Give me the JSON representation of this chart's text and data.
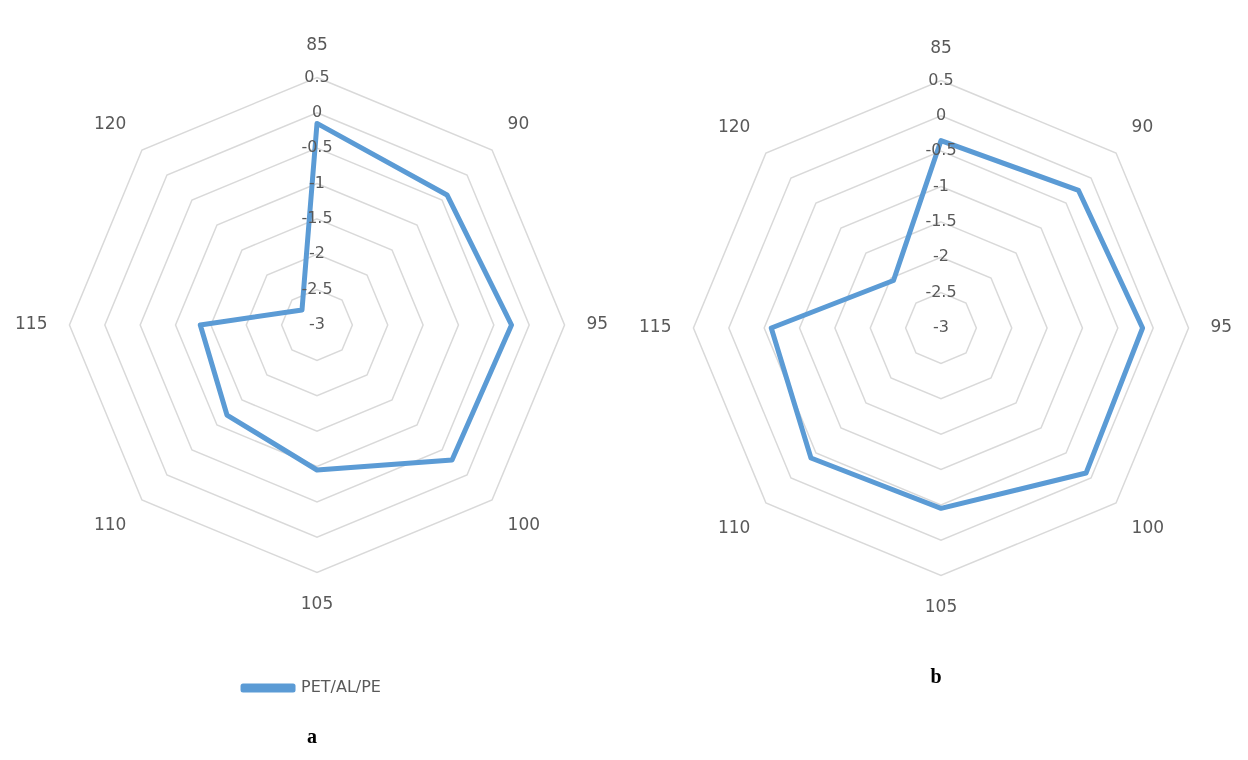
{
  "chart_data": [
    {
      "type": "radar",
      "title": "a",
      "categories": [
        "85",
        "90",
        "95",
        "100",
        "105",
        "110",
        "115",
        "120"
      ],
      "ylim": [
        -3,
        0.5
      ],
      "yticks": [
        -3,
        -2.5,
        -2,
        -1.5,
        -1,
        -0.5,
        0,
        0.5
      ],
      "grid": true,
      "legend": "bottom",
      "series": [
        {
          "name": "PET/AL/PE",
          "color": "#5b9bd5",
          "values": [
            -0.15,
            -0.4,
            -0.25,
            -0.3,
            -0.95,
            -1.2,
            -1.35,
            -2.7
          ]
        }
      ]
    },
    {
      "type": "radar",
      "title": "b",
      "categories": [
        "85",
        "90",
        "95",
        "100",
        "105",
        "110",
        "115",
        "120"
      ],
      "ylim": [
        -3,
        0.5
      ],
      "yticks": [
        -3,
        -2.5,
        -2,
        -1.5,
        -1,
        -0.5,
        0,
        0.5
      ],
      "grid": true,
      "series": [
        {
          "color": "#5b9bd5",
          "values": [
            -0.35,
            -0.25,
            -0.15,
            -0.1,
            -0.45,
            -0.4,
            -0.6,
            -2.05
          ]
        }
      ]
    }
  ]
}
